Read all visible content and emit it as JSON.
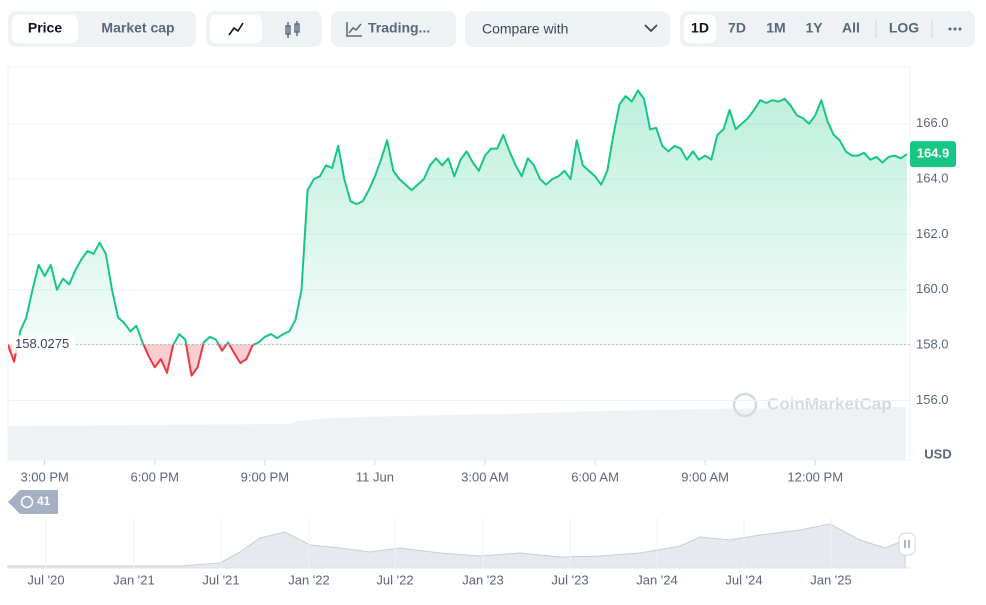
{
  "toolbar": {
    "tabs": [
      "Price",
      "Market cap"
    ],
    "tool": "Trading...",
    "compare": "Compare with",
    "ranges": [
      "1D",
      "7D",
      "1M",
      "1Y",
      "All"
    ],
    "scale": "LOG"
  },
  "chart_data": {
    "type": "line",
    "x": [
      -60,
      -50,
      -40,
      -30,
      -20,
      -10,
      0,
      10,
      20,
      30,
      40,
      50,
      60,
      70,
      80,
      90,
      100,
      110,
      120,
      130,
      140,
      150,
      160,
      170,
      180,
      190,
      200,
      210,
      220,
      230,
      240,
      250,
      260,
      270,
      280,
      290,
      300,
      310,
      320,
      330,
      340,
      350,
      360,
      370,
      380,
      390,
      400,
      410,
      420,
      430,
      440,
      450,
      460,
      470,
      480,
      490,
      500,
      510,
      520,
      530,
      540,
      550,
      560,
      570,
      580,
      590,
      600,
      610,
      620,
      630,
      640,
      650,
      660,
      670,
      680,
      690,
      700,
      710,
      720,
      730,
      740,
      750,
      760,
      770,
      780,
      790,
      800,
      810,
      820,
      830,
      840,
      850,
      860,
      870,
      880,
      890,
      900,
      910,
      920,
      930,
      940,
      950,
      960,
      970,
      980,
      990,
      1000,
      1010,
      1020,
      1030,
      1040,
      1050,
      1060,
      1070,
      1080,
      1090,
      1100,
      1110,
      1120,
      1130,
      1140,
      1150,
      1160,
      1170,
      1180,
      1190,
      1200,
      1210,
      1220,
      1230,
      1240,
      1250,
      1260,
      1270,
      1280,
      1290,
      1300,
      1310,
      1320,
      1330,
      1340,
      1350,
      1360,
      1370,
      1380,
      1390,
      1400,
      1410
    ],
    "series": [
      {
        "color": "#16c784",
        "below_color": "#ea3943",
        "values": [
          158.0,
          157.4,
          158.5,
          159.0,
          160.0,
          160.9,
          160.5,
          160.9,
          160.0,
          160.4,
          160.2,
          160.7,
          161.1,
          161.4,
          161.3,
          161.7,
          161.3,
          160.0,
          159.0,
          158.8,
          158.5,
          158.7,
          158.1,
          157.6,
          157.2,
          157.5,
          157.0,
          158.0,
          158.4,
          158.2,
          156.9,
          157.2,
          158.1,
          158.3,
          158.2,
          157.8,
          158.1,
          157.7,
          157.35,
          157.5,
          158.0,
          158.1,
          158.3,
          158.4,
          158.25,
          158.4,
          158.5,
          158.9,
          160.0,
          163.6,
          164.0,
          164.1,
          164.5,
          164.4,
          165.2,
          164.0,
          163.2,
          163.1,
          163.2,
          163.6,
          164.1,
          164.7,
          165.4,
          164.3,
          164.0,
          163.8,
          163.6,
          163.8,
          164.0,
          164.5,
          164.75,
          164.5,
          164.75,
          164.1,
          164.7,
          165.0,
          164.6,
          164.3,
          164.85,
          165.1,
          165.1,
          165.6,
          165.0,
          164.5,
          164.1,
          164.75,
          164.5,
          164.0,
          163.8,
          164.0,
          164.1,
          164.3,
          164.0,
          165.4,
          164.5,
          164.3,
          164.1,
          163.8,
          164.3,
          165.6,
          166.7,
          167.0,
          166.8,
          167.2,
          166.9,
          165.8,
          165.85,
          165.2,
          165.0,
          165.2,
          165.1,
          164.7,
          165.0,
          164.7,
          164.85,
          164.7,
          165.6,
          165.8,
          166.5,
          165.8,
          166.0,
          166.2,
          166.5,
          166.85,
          166.75,
          166.85,
          166.8,
          166.9,
          166.65,
          166.3,
          166.2,
          166.0,
          166.3,
          166.85,
          166.1,
          165.6,
          165.4,
          165.0,
          164.85,
          164.85,
          164.95,
          164.7,
          164.8,
          164.6,
          164.8,
          164.85,
          164.75,
          164.9
        ]
      }
    ],
    "reference": 158.0275,
    "xlim": [
      -60,
      1415
    ],
    "xticks": [
      {
        "value": 0,
        "label": "3:00 PM"
      },
      {
        "value": 180,
        "label": "6:00 PM"
      },
      {
        "value": 360,
        "label": "9:00 PM"
      },
      {
        "value": 540,
        "label": "11 Jun"
      },
      {
        "value": 720,
        "label": "3:00 AM"
      },
      {
        "value": 900,
        "label": "6:00 AM"
      },
      {
        "value": 1080,
        "label": "9:00 AM"
      },
      {
        "value": 1260,
        "label": "12:00 PM"
      }
    ],
    "ylim": [
      153.85,
      168.05
    ],
    "yticks": [
      {
        "value": 156,
        "label": "156.0"
      },
      {
        "value": 158,
        "label": "158.0"
      },
      {
        "value": 160,
        "label": "160.0"
      },
      {
        "value": 162,
        "label": "162.0"
      },
      {
        "value": 164,
        "label": "164.0"
      },
      {
        "value": 166,
        "label": "166.0"
      }
    ],
    "grid": true,
    "y_axis_label": "USD",
    "watermark": "CoinMarketCap"
  },
  "badge": 41,
  "navigator": {
    "labels": [
      "Jul '20",
      "Jan '21",
      "Jul '21",
      "Jan '22",
      "Jul '22",
      "Jan '23",
      "Jul '23",
      "Jan '24",
      "Jul '24",
      "Jan '25"
    ]
  }
}
